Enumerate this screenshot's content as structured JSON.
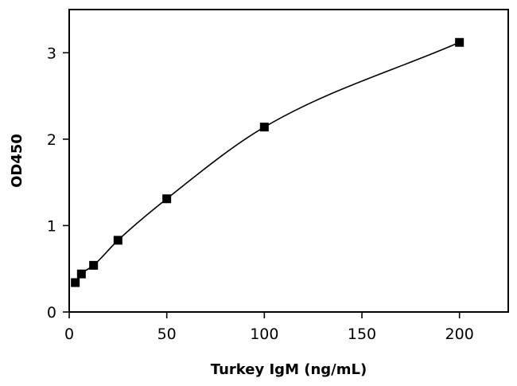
{
  "chart_data": {
    "type": "scatter",
    "title": "",
    "xlabel": "Turkey IgM (ng/mL)",
    "ylabel": "OD450",
    "xlim": [
      0,
      225
    ],
    "ylim": [
      0,
      3.5
    ],
    "x_ticks": [
      0,
      50,
      100,
      150,
      200
    ],
    "y_ticks": [
      0,
      1,
      2,
      3
    ],
    "grid": false,
    "legend": "none",
    "marker": "square",
    "fit_line": "smooth curve through points",
    "series": [
      {
        "x": [
          3.125,
          6.25,
          12.5,
          25,
          50,
          100,
          200
        ],
        "y": [
          0.34,
          0.44,
          0.54,
          0.83,
          1.31,
          2.14,
          3.12
        ]
      }
    ]
  }
}
